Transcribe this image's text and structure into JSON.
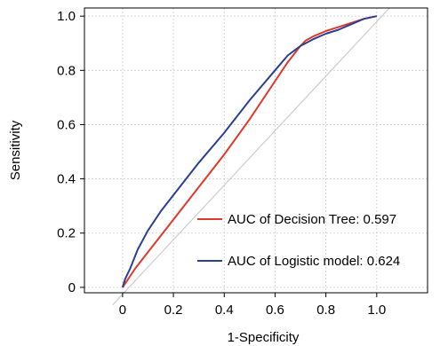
{
  "chart_data": {
    "type": "line",
    "xlabel": "1-Specificity",
    "ylabel": "Sensitivity",
    "xlim": [
      -0.15,
      1.2
    ],
    "ylim": [
      -0.02,
      1.03
    ],
    "grid": true,
    "legend_position": "bottom-right",
    "x_ticks": [
      0,
      0.2,
      0.4,
      0.6,
      0.8,
      1.0
    ],
    "x_tick_labels": [
      "0",
      "0.2",
      "0.4",
      "0.6",
      "0.8",
      "1.0"
    ],
    "y_ticks": [
      0,
      0.2,
      0.4,
      0.6,
      0.8,
      1.0
    ],
    "y_tick_labels": [
      "0",
      "0.2",
      "0.4",
      "0.6",
      "0.8",
      "1.0"
    ],
    "reference_line": {
      "x": [
        -0.05,
        1.05
      ],
      "y": [
        -0.05,
        1.05
      ],
      "color": "#cccccc"
    },
    "series": [
      {
        "name": "AUC of Decision Tree: 0.597",
        "color": "#e0382b",
        "x": [
          0,
          0.05,
          0.1,
          0.2,
          0.3,
          0.4,
          0.5,
          0.6,
          0.65,
          0.7,
          0.72,
          0.75,
          0.8,
          0.85,
          0.9,
          0.95,
          1.0
        ],
        "y": [
          0,
          0.07,
          0.13,
          0.25,
          0.37,
          0.49,
          0.62,
          0.76,
          0.83,
          0.89,
          0.91,
          0.925,
          0.945,
          0.96,
          0.975,
          0.99,
          1.0
        ]
      },
      {
        "name": "AUC of Logistic model: 0.624",
        "color": "#2b3f93",
        "x": [
          0,
          0.01,
          0.03,
          0.06,
          0.1,
          0.15,
          0.2,
          0.3,
          0.4,
          0.5,
          0.6,
          0.65,
          0.7,
          0.72,
          0.75,
          0.8,
          0.85,
          0.9,
          0.95,
          1.0
        ],
        "y": [
          0,
          0.03,
          0.07,
          0.14,
          0.21,
          0.28,
          0.34,
          0.46,
          0.57,
          0.69,
          0.8,
          0.855,
          0.89,
          0.9,
          0.915,
          0.935,
          0.95,
          0.97,
          0.99,
          1.0
        ]
      }
    ]
  }
}
